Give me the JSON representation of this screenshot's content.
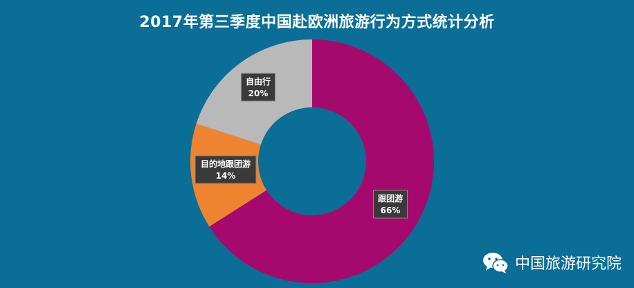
{
  "chart_data": {
    "type": "pie",
    "donut": true,
    "title": "2017年第三季度中国赴欧洲旅游行为方式统计分析",
    "slices": [
      {
        "label": "跟团游",
        "value": 66,
        "display": "66%",
        "color": "#a6096e"
      },
      {
        "label": "目的地跟团游",
        "value": 14,
        "display": "14%",
        "color": "#ef8430"
      },
      {
        "label": "自由行",
        "value": 20,
        "display": "20%",
        "color": "#b9b9b9"
      }
    ],
    "start": "top",
    "direction": "clockwise",
    "legend": "none"
  },
  "watermark": {
    "text": "中国旅游研究院",
    "icon": "wechat-icon"
  }
}
